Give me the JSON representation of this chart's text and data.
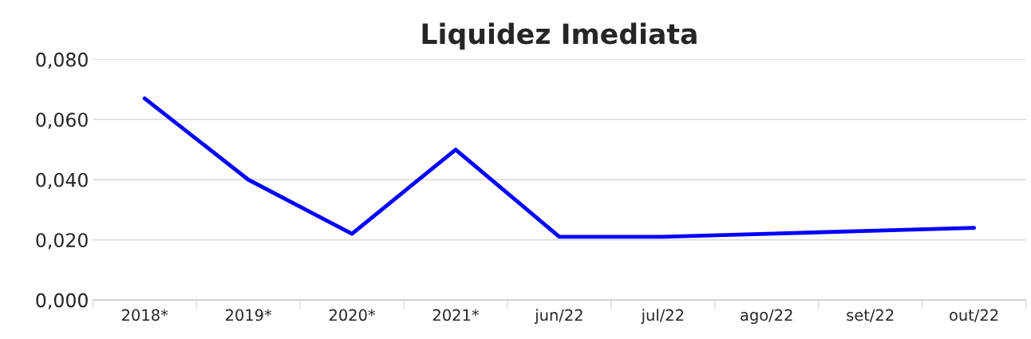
{
  "chart_data": {
    "type": "line",
    "title": "Liquidez Imediata",
    "categories": [
      "2018*",
      "2019*",
      "2020*",
      "2021*",
      "jun/22",
      "jul/22",
      "ago/22",
      "set/22",
      "out/22"
    ],
    "series": [
      {
        "color": "#0000ff",
        "values": [
          0.067,
          0.04,
          0.022,
          0.05,
          0.021,
          0.021,
          0.022,
          0.023,
          0.024
        ]
      }
    ],
    "ylim": [
      0,
      0.08
    ],
    "yticks": [
      {
        "value": 0,
        "label": "0,000"
      },
      {
        "value": 0.02,
        "label": "0,020"
      },
      {
        "value": 0.04,
        "label": "0,040"
      },
      {
        "value": 0.06,
        "label": "0,060"
      },
      {
        "value": 0.08,
        "label": "0,080"
      }
    ],
    "grid": "y",
    "marker": "none",
    "line_style": "solid",
    "legend": false
  }
}
